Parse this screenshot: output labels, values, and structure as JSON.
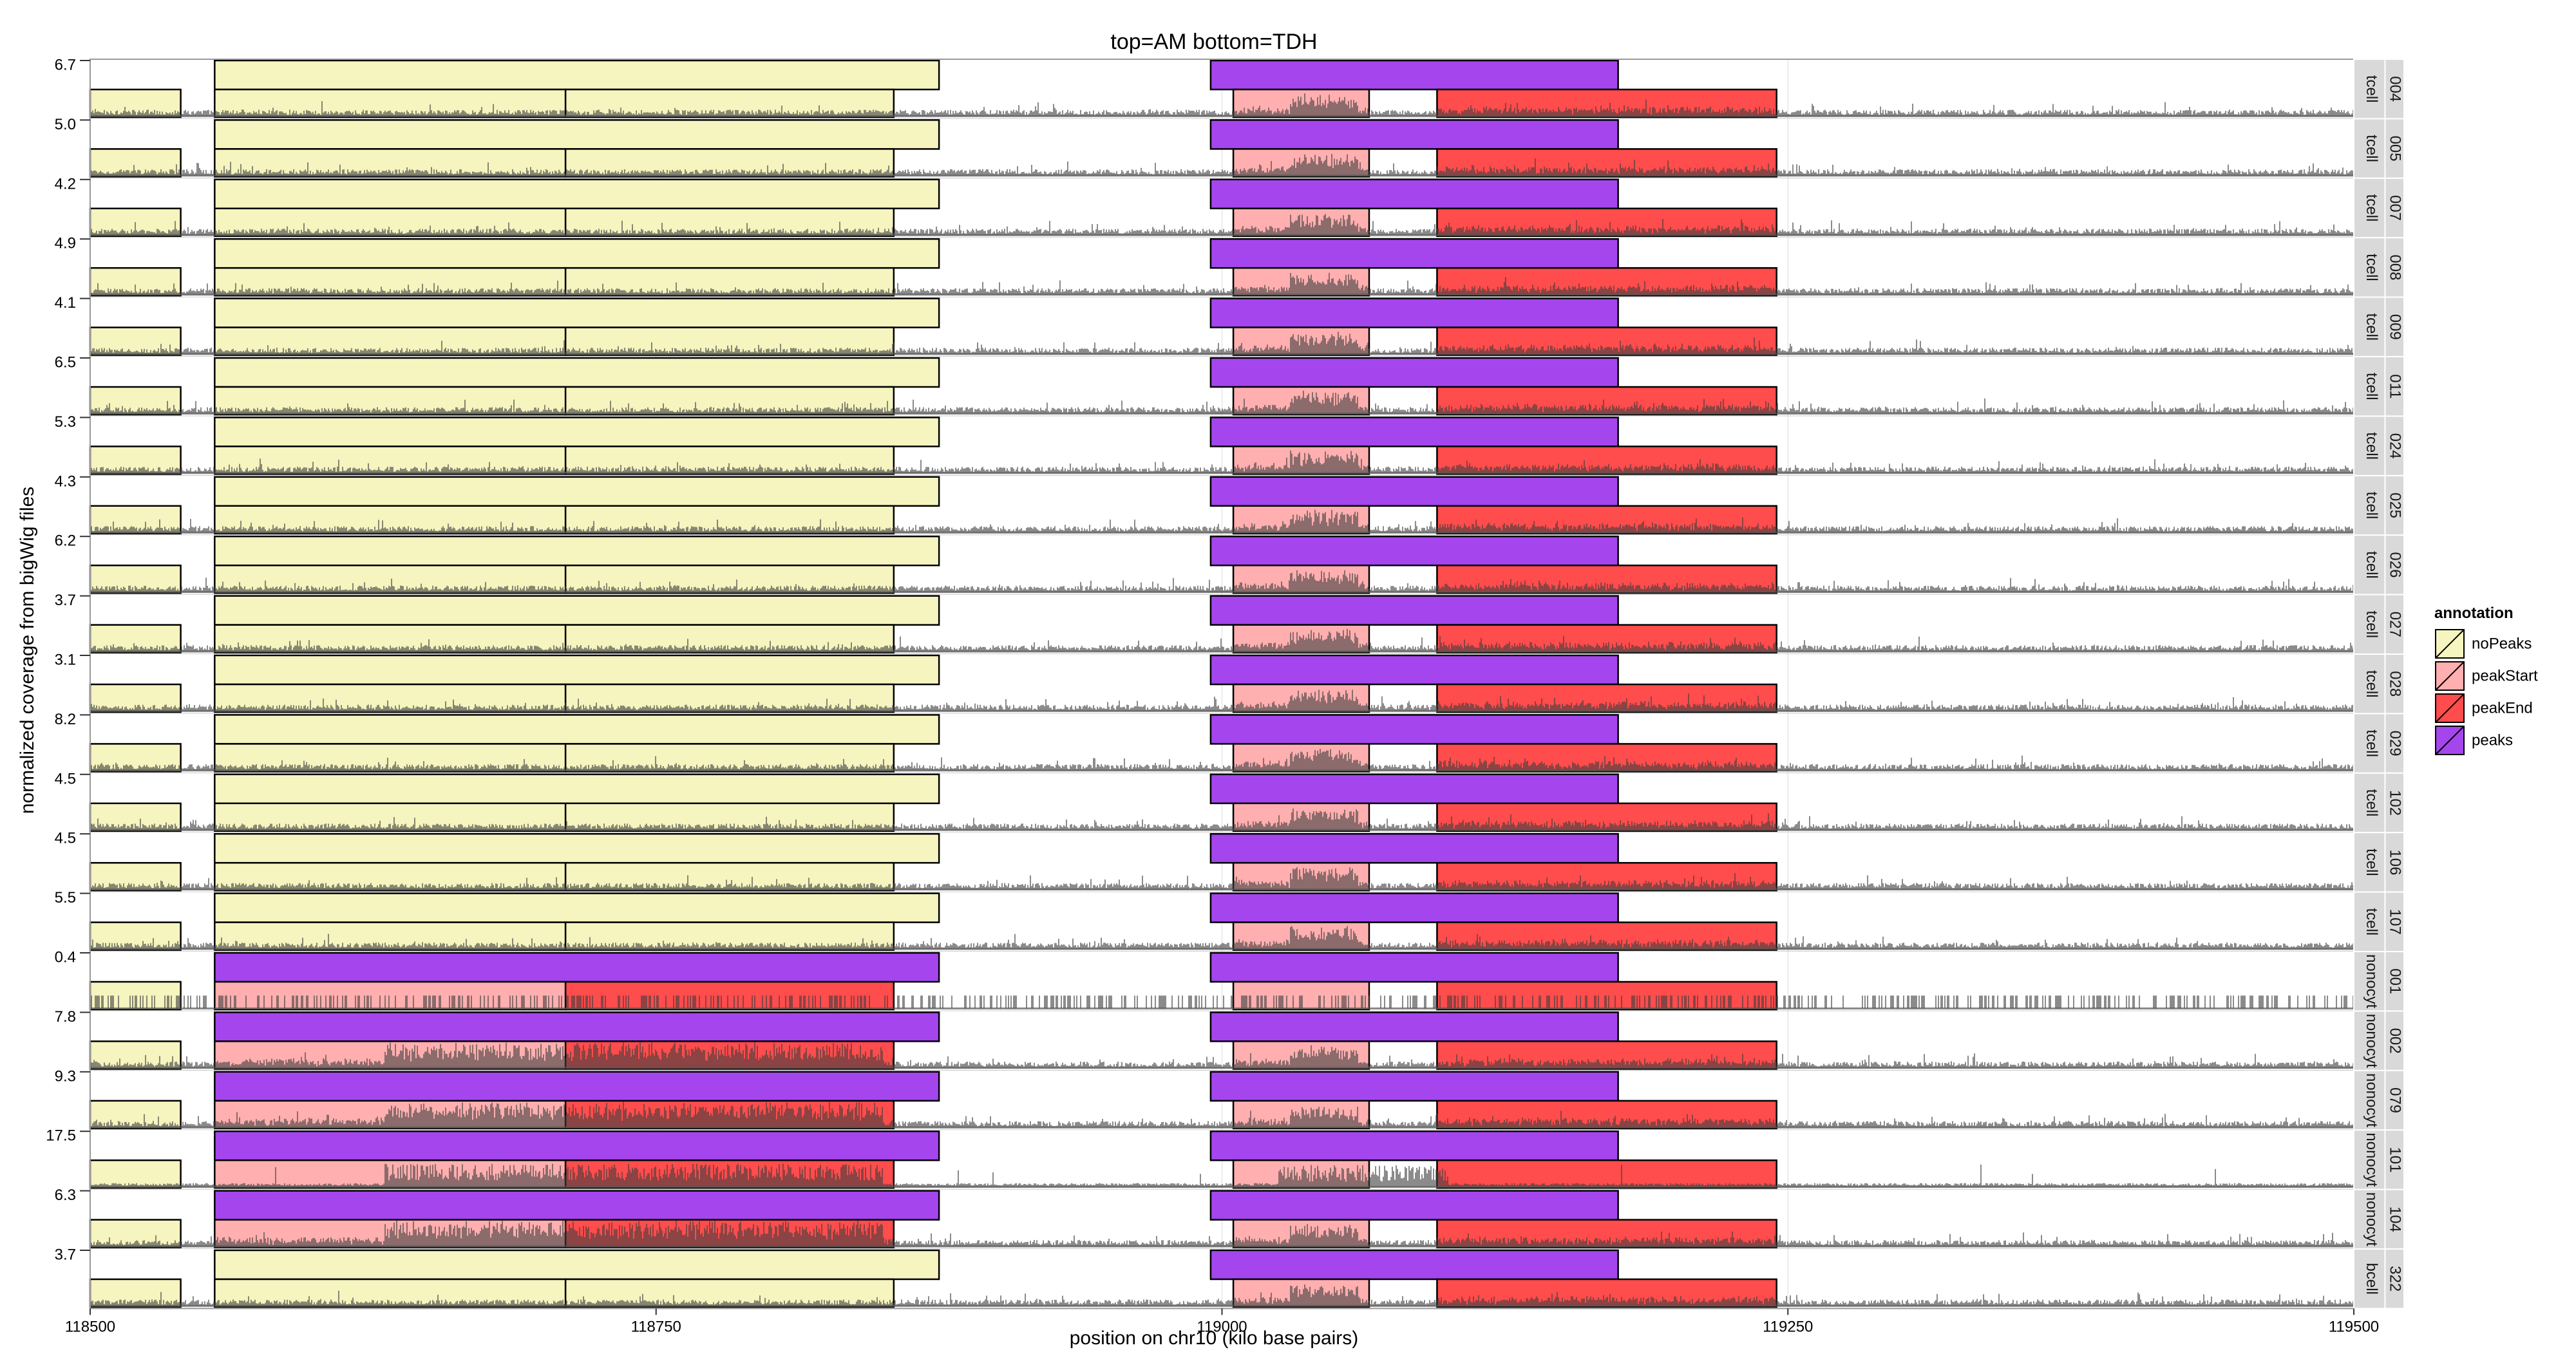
{
  "chart_data": {
    "type": "area",
    "title": "top=AM bottom=TDH",
    "xlabel": "position on chr10 (kilo base pairs)",
    "ylabel": "normalized coverage from bigWig files",
    "xlim": [
      118500,
      119500
    ],
    "xticks": [
      118500,
      118750,
      119000,
      119250,
      119500
    ],
    "xtick_labels": [
      "118500",
      "118750",
      "119000",
      "119250",
      "119500"
    ],
    "legend": {
      "title": "annotation",
      "position": "right",
      "items": [
        {
          "label": "noPeaks",
          "color": "#f6f4bf"
        },
        {
          "label": "peakStart",
          "color": "#ffafaf"
        },
        {
          "label": "peakEnd",
          "color": "#ff4c4c"
        },
        {
          "label": "peaks",
          "color": "#a445ee"
        }
      ]
    },
    "annotation_colors": {
      "noPeaks": "#f6f4bf",
      "peakStart": "#ffafaf",
      "peakEnd": "#ff4c4c",
      "peaks": "#a445ee"
    },
    "panels": [
      {
        "sample": "004",
        "cell_type": "tcell",
        "ymax": "6.7"
      },
      {
        "sample": "005",
        "cell_type": "tcell",
        "ymax": "5.0"
      },
      {
        "sample": "007",
        "cell_type": "tcell",
        "ymax": "4.2"
      },
      {
        "sample": "008",
        "cell_type": "tcell",
        "ymax": "4.9"
      },
      {
        "sample": "009",
        "cell_type": "tcell",
        "ymax": "4.1"
      },
      {
        "sample": "011",
        "cell_type": "tcell",
        "ymax": "6.5"
      },
      {
        "sample": "024",
        "cell_type": "tcell",
        "ymax": "5.3"
      },
      {
        "sample": "025",
        "cell_type": "tcell",
        "ymax": "4.3"
      },
      {
        "sample": "026",
        "cell_type": "tcell",
        "ymax": "6.2"
      },
      {
        "sample": "027",
        "cell_type": "tcell",
        "ymax": "3.7"
      },
      {
        "sample": "028",
        "cell_type": "tcell",
        "ymax": "3.1"
      },
      {
        "sample": "029",
        "cell_type": "tcell",
        "ymax": "8.2"
      },
      {
        "sample": "102",
        "cell_type": "tcell",
        "ymax": "4.5"
      },
      {
        "sample": "106",
        "cell_type": "tcell",
        "ymax": "4.5"
      },
      {
        "sample": "107",
        "cell_type": "tcell",
        "ymax": "5.5"
      },
      {
        "sample": "001",
        "cell_type": "monocyte",
        "cell_label": "nonocyt",
        "ymax": "0.4"
      },
      {
        "sample": "002",
        "cell_type": "monocyte",
        "cell_label": "nonocyt",
        "ymax": "7.8"
      },
      {
        "sample": "079",
        "cell_type": "monocyte",
        "cell_label": "nonocyt",
        "ymax": "9.3"
      },
      {
        "sample": "101",
        "cell_type": "monocyte",
        "cell_label": "nonocyt",
        "ymax": "17.5"
      },
      {
        "sample": "104",
        "cell_type": "monocyte",
        "cell_label": "nonocyt",
        "ymax": "6.3"
      },
      {
        "sample": "322",
        "cell_type": "bcell",
        "ymax": "3.7"
      }
    ],
    "annotations_AM_top": {
      "tcell": [
        {
          "start": 118555,
          "end": 118875,
          "annotation": "noPeaks"
        },
        {
          "start": 118995,
          "end": 119175,
          "annotation": "peaks"
        }
      ],
      "monocyte": [
        {
          "start": 118555,
          "end": 118875,
          "annotation": "peaks"
        },
        {
          "start": 118995,
          "end": 119175,
          "annotation": "peaks"
        }
      ],
      "bcell": [
        {
          "start": 118555,
          "end": 118875,
          "annotation": "noPeaks"
        },
        {
          "start": 118995,
          "end": 119175,
          "annotation": "peaks"
        }
      ]
    },
    "annotations_TDH_bottom": {
      "tcell": [
        {
          "start": 118500,
          "end": 118540,
          "annotation": "noPeaks"
        },
        {
          "start": 118555,
          "end": 118710,
          "annotation": "noPeaks"
        },
        {
          "start": 118710,
          "end": 118855,
          "annotation": "noPeaks"
        },
        {
          "start": 119005,
          "end": 119065,
          "annotation": "peakStart"
        },
        {
          "start": 119095,
          "end": 119245,
          "annotation": "peakEnd"
        }
      ],
      "monocyte": [
        {
          "start": 118500,
          "end": 118540,
          "annotation": "noPeaks"
        },
        {
          "start": 118555,
          "end": 118710,
          "annotation": "peakStart"
        },
        {
          "start": 118710,
          "end": 118855,
          "annotation": "peakEnd"
        },
        {
          "start": 119005,
          "end": 119065,
          "annotation": "peakStart"
        },
        {
          "start": 119095,
          "end": 119245,
          "annotation": "peakEnd"
        }
      ],
      "bcell": [
        {
          "start": 118500,
          "end": 118540,
          "annotation": "noPeaks"
        },
        {
          "start": 118555,
          "end": 118710,
          "annotation": "noPeaks"
        },
        {
          "start": 118710,
          "end": 118855,
          "annotation": "noPeaks"
        },
        {
          "start": 119005,
          "end": 119065,
          "annotation": "peakStart"
        },
        {
          "start": 119095,
          "end": 119245,
          "annotation": "peakEnd"
        }
      ]
    }
  }
}
